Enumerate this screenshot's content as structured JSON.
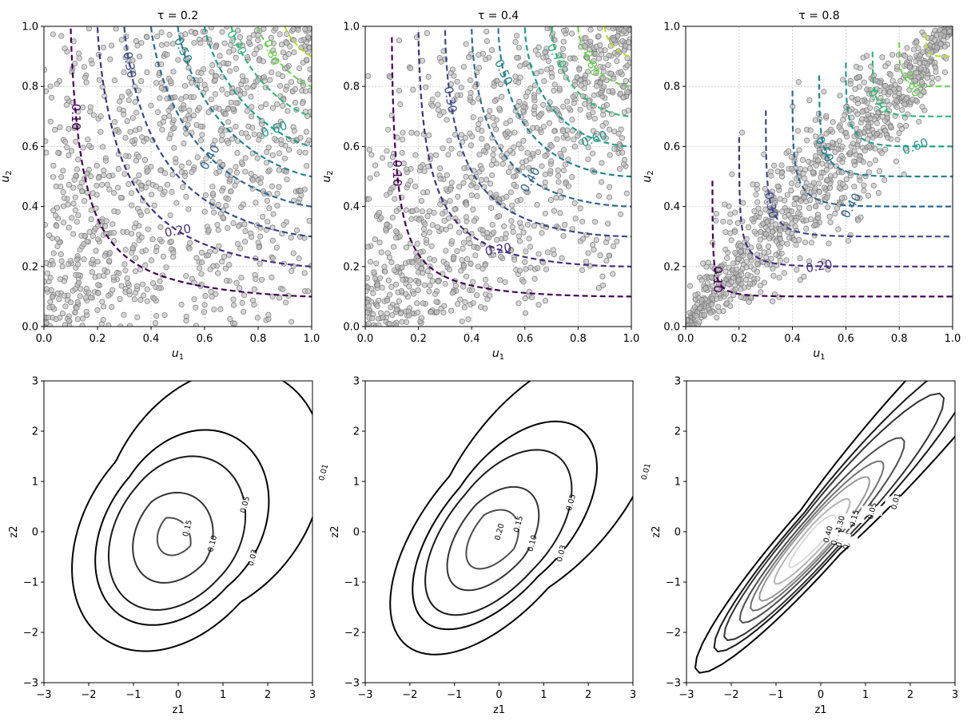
{
  "figure": {
    "description_free": true,
    "colors": {
      "scatter_fill": "#bdbdbd",
      "scatter_edge": "#7a7a7a",
      "grid": "#c8c8c8",
      "axis": "#000000"
    }
  },
  "chart_data": [
    {
      "type": "scatter",
      "panel": "top-left",
      "title": "τ = 0.2",
      "tau": 0.2,
      "xlabel": "u1",
      "ylabel": "u2",
      "xlim": [
        0,
        1
      ],
      "ylim": [
        0,
        1
      ],
      "xticks": [
        "0.0",
        "0.2",
        "0.4",
        "0.6",
        "0.8",
        "1.0"
      ],
      "yticks": [
        "0.0",
        "0.2",
        "0.4",
        "0.6",
        "0.8",
        "1.0"
      ],
      "grid": true,
      "n_points": 1000,
      "contour_levels": [
        0.1,
        0.2,
        0.3,
        0.4,
        0.5,
        0.6,
        0.7,
        0.8,
        0.9
      ],
      "contour_labels": [
        "0.10",
        "0.20",
        "0.30",
        "0.40",
        "0.50",
        "0.60",
        "0.70",
        "0.80"
      ],
      "contour_colors": [
        "#440154",
        "#472f7d",
        "#3e4a89",
        "#31688e",
        "#26828e",
        "#1f9e89",
        "#35b779",
        "#6ece58",
        "#b5de2b",
        "#fde725"
      ]
    },
    {
      "type": "scatter",
      "panel": "top-middle",
      "title": "τ = 0.4",
      "tau": 0.4,
      "xlabel": "u1",
      "ylabel": "u2",
      "xlim": [
        0,
        1
      ],
      "ylim": [
        0,
        1
      ],
      "xticks": [
        "0.0",
        "0.2",
        "0.4",
        "0.6",
        "0.8",
        "1.0"
      ],
      "yticks": [
        "0.0",
        "0.2",
        "0.4",
        "0.6",
        "0.8",
        "1.0"
      ],
      "grid": true,
      "n_points": 1000,
      "contour_levels": [
        0.1,
        0.2,
        0.3,
        0.4,
        0.5,
        0.6,
        0.7,
        0.8,
        0.9
      ],
      "contour_labels": [
        "0.10",
        "0.20",
        "0.30",
        "0.40",
        "0.50",
        "0.60",
        "0.70",
        "0.80"
      ],
      "contour_colors": [
        "#440154",
        "#472f7d",
        "#3e4a89",
        "#31688e",
        "#26828e",
        "#1f9e89",
        "#35b779",
        "#6ece58",
        "#b5de2b",
        "#fde725"
      ]
    },
    {
      "type": "scatter",
      "panel": "top-right",
      "title": "τ = 0.8",
      "tau": 0.8,
      "xlabel": "u1",
      "ylabel": "u2",
      "xlim": [
        0,
        1
      ],
      "ylim": [
        0,
        1
      ],
      "xticks": [
        "0.0",
        "0.2",
        "0.4",
        "0.6",
        "0.8",
        "1.0"
      ],
      "yticks": [
        "0.0",
        "0.2",
        "0.4",
        "0.6",
        "0.8",
        "1.0"
      ],
      "grid": true,
      "n_points": 1000,
      "contour_levels": [
        0.1,
        0.2,
        0.3,
        0.4,
        0.5,
        0.6,
        0.7,
        0.8,
        0.9
      ],
      "contour_labels": [
        "0.10",
        "0.20",
        "0.30",
        "0.40",
        "0.50",
        "0.60",
        "0.70",
        "0.80"
      ],
      "contour_colors": [
        "#440154",
        "#472f7d",
        "#3e4a89",
        "#31688e",
        "#26828e",
        "#1f9e89",
        "#35b779",
        "#6ece58",
        "#b5de2b",
        "#fde725"
      ]
    },
    {
      "type": "contour",
      "panel": "bottom-left",
      "tau": 0.2,
      "xlabel": "z1",
      "ylabel": "z2",
      "xlim": [
        -3,
        3
      ],
      "ylim": [
        -3,
        3
      ],
      "xticks": [
        "−3",
        "−2",
        "−1",
        "0",
        "1",
        "2",
        "3"
      ],
      "yticks": [
        "−3",
        "−2",
        "−1",
        "0",
        "1",
        "2",
        "3"
      ],
      "levels": [
        0.01,
        0.03,
        0.05,
        0.1,
        0.15
      ],
      "level_labels": [
        "0.01",
        "0.03",
        "0.05",
        "0.10",
        "0.15"
      ],
      "level_colors": [
        "#000000",
        "#000000",
        "#1a1a1a",
        "#333333",
        "#4d4d4d"
      ]
    },
    {
      "type": "contour",
      "panel": "bottom-middle",
      "tau": 0.4,
      "xlabel": "z1",
      "ylabel": "z2",
      "xlim": [
        -3,
        3
      ],
      "ylim": [
        -3,
        3
      ],
      "xticks": [
        "−3",
        "−2",
        "−1",
        "0",
        "1",
        "2",
        "3"
      ],
      "yticks": [
        "−3",
        "−2",
        "−1",
        "0",
        "1",
        "2",
        "3"
      ],
      "levels": [
        0.01,
        0.03,
        0.05,
        0.1,
        0.15,
        0.2
      ],
      "level_labels": [
        "0.01",
        "0.03",
        "0.05",
        "0.10",
        "0.15",
        "0.20"
      ],
      "level_colors": [
        "#000000",
        "#000000",
        "#1a1a1a",
        "#333333",
        "#4d4d4d",
        "#666666"
      ]
    },
    {
      "type": "contour",
      "panel": "bottom-right",
      "tau": 0.8,
      "xlabel": "z1",
      "ylabel": "z2",
      "xlim": [
        -3,
        3
      ],
      "ylim": [
        -3,
        3
      ],
      "xticks": [
        "−3",
        "−2",
        "−1",
        "0",
        "1",
        "2",
        "3"
      ],
      "yticks": [
        "−3",
        "−2",
        "−1",
        "0",
        "1",
        "2",
        "3"
      ],
      "levels": [
        0.01,
        0.03,
        0.05,
        0.1,
        0.15,
        0.2,
        0.3,
        0.4
      ],
      "level_labels": [
        "0.01",
        "0.03",
        "0.05",
        "0.10",
        "0.15",
        "0.20",
        "0.30",
        "0.40"
      ],
      "level_colors": [
        "#000000",
        "#1a1a1a",
        "#333333",
        "#4d4d4d",
        "#737373",
        "#999999",
        "#b3b3b3",
        "#d9d9d9"
      ]
    }
  ]
}
